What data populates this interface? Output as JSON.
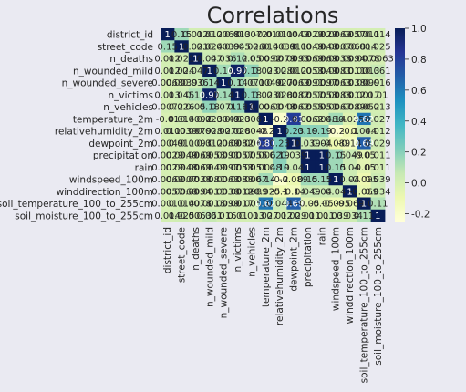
{
  "chart_data": {
    "type": "heatmap",
    "title": "Correlations",
    "xlabel": "",
    "ylabel": "",
    "annot": true,
    "colormap": "YlGnBu",
    "vmin": -0.25,
    "vmax": 1.0,
    "variables": [
      "district_id",
      "street_code",
      "n_deaths",
      "n_wounded_mild",
      "n_wounded_severe",
      "n_victims",
      "n_vehicles",
      "temperature_2m",
      "relativehumidity_2m",
      "dewpoint_2m",
      "precipitation",
      "rain",
      "windspeed_100m",
      "winddirection_100m",
      "soil_temperature_100_to_255cm",
      "soil_moisture_100_to_255cm"
    ],
    "matrix": [
      [
        1,
        0.15,
        0.012,
        0.012,
        0.0068,
        0.013,
        0.0072,
        -0.01,
        0.011,
        0.0049,
        0.0029,
        0.0029,
        0.0069,
        0.0057,
        0.0011,
        0.014
      ],
      [
        0.15,
        1,
        0.021,
        0.024,
        0.0039,
        0.045,
        0.026,
        0.014,
        0.0039,
        0.011,
        0.0049,
        0.0048,
        0.0007,
        0.0068,
        0.014,
        0.025
      ],
      [
        0.012,
        0.021,
        1,
        0.047,
        0.036,
        0.12,
        0.05,
        0.0092,
        0.0079,
        0.0093,
        0.0069,
        0.0069,
        0.0038,
        0.0094,
        0.0078,
        0.0063
      ],
      [
        0.012,
        0.024,
        0.047,
        1,
        0.14,
        0.97,
        0.18,
        0.023,
        0.028,
        0.012,
        0.0053,
        0.0049,
        0.0081,
        0.0011,
        0.0013,
        0.061
      ],
      [
        0.0068,
        0.0039,
        0.036,
        0.14,
        1,
        0.14,
        0.071,
        0.0049,
        0.027,
        0.0069,
        0.0091,
        0.0097,
        0.0063,
        0.0038,
        0.0099,
        0.016
      ],
      [
        0.013,
        0.045,
        0.12,
        0.97,
        0.14,
        1,
        0.18,
        0.023,
        0.028,
        0.0082,
        0.0057,
        0.0053,
        0.0088,
        0.0012,
        0.0017,
        0.01
      ],
      [
        0.0072,
        0.026,
        0.05,
        0.18,
        0.071,
        0.18,
        1,
        0.0061,
        0.0048,
        0.0062,
        0.0055,
        0.0051,
        0.0067,
        0.0089,
        0.0052,
        0.013
      ],
      [
        -0.01,
        0.014,
        0.0092,
        0.023,
        0.0049,
        0.023,
        0.0061,
        1,
        -0.2,
        0.81,
        0.0062,
        0.0048,
        0.14,
        -0.025,
        0.62,
        0.027
      ],
      [
        0.011,
        0.0039,
        0.0079,
        0.028,
        0.027,
        0.028,
        0.0048,
        -0.2,
        1,
        0.23,
        0.19,
        0.19,
        -0.2,
        -0.1,
        0.044,
        0.012
      ],
      [
        0.0049,
        0.011,
        0.0093,
        0.012,
        0.0069,
        0.0082,
        0.0062,
        0.81,
        0.23,
        1,
        0.039,
        0.04,
        -0.089,
        -0.14,
        0.69,
        0.029
      ],
      [
        0.0029,
        0.0049,
        0.0069,
        0.0053,
        0.0091,
        0.0057,
        0.0055,
        0.0062,
        0.19,
        0.039,
        1,
        1,
        0.15,
        0.049,
        -0.05,
        0.011
      ],
      [
        0.0029,
        0.0048,
        0.0069,
        0.0049,
        0.0097,
        0.0053,
        0.0051,
        0.0048,
        0.19,
        0.04,
        1,
        1,
        0.15,
        0.04,
        -0.05,
        0.011
      ],
      [
        0.0069,
        0.0007,
        0.0038,
        0.0081,
        0.0063,
        0.0088,
        0.0067,
        0.14,
        -0.2,
        -0.089,
        0.15,
        0.15,
        1,
        0.04,
        -0.095,
        0.039
      ],
      [
        0.0057,
        0.0068,
        0.0094,
        0.0011,
        0.0038,
        0.0012,
        0.0089,
        -0.025,
        -0.1,
        -0.14,
        0.049,
        0.04,
        0.04,
        1,
        -0.069,
        0.034
      ],
      [
        0.0011,
        0.014,
        0.0078,
        0.0013,
        0.0099,
        0.0017,
        0.0052,
        0.62,
        0.044,
        0.69,
        -0.05,
        -0.05,
        -0.095,
        -0.069,
        1,
        0.11
      ],
      [
        0.014,
        0.025,
        0.0063,
        0.061,
        0.016,
        0.01,
        0.013,
        0.027,
        0.012,
        0.029,
        0.011,
        0.011,
        0.039,
        0.034,
        0.11,
        1
      ]
    ],
    "colorbar_ticks": [
      1.0,
      0.8,
      0.6,
      0.4,
      0.2,
      0.0,
      -0.2
    ],
    "colorbar_tick_labels": [
      "1.0",
      "0.8",
      "0.6",
      "0.4",
      "0.2",
      "0.0",
      "-0.2"
    ]
  }
}
